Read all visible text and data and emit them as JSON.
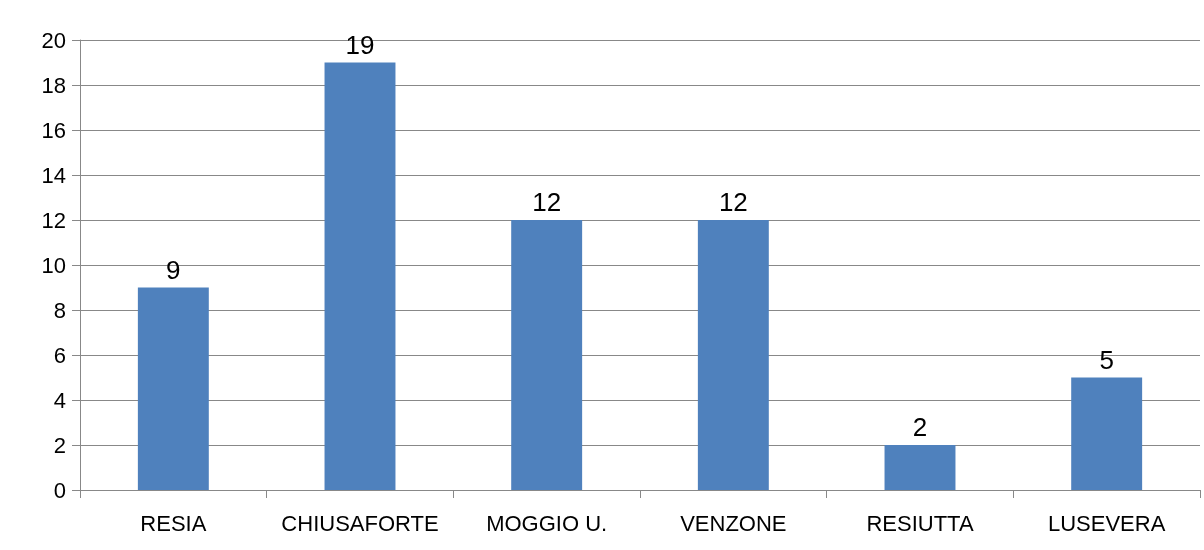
{
  "chart_data": {
    "type": "bar",
    "categories": [
      "RESIA",
      "CHIUSAFORTE",
      "MOGGIO U.",
      "VENZONE",
      "RESIUTTA",
      "LUSEVERA"
    ],
    "values": [
      9,
      19,
      12,
      12,
      2,
      5
    ],
    "color": "#4f81bd",
    "ylim": [
      0,
      20
    ],
    "yticks": [
      0,
      2,
      4,
      6,
      8,
      10,
      12,
      14,
      16,
      18,
      20
    ],
    "grid": "y",
    "data_labels": true
  }
}
